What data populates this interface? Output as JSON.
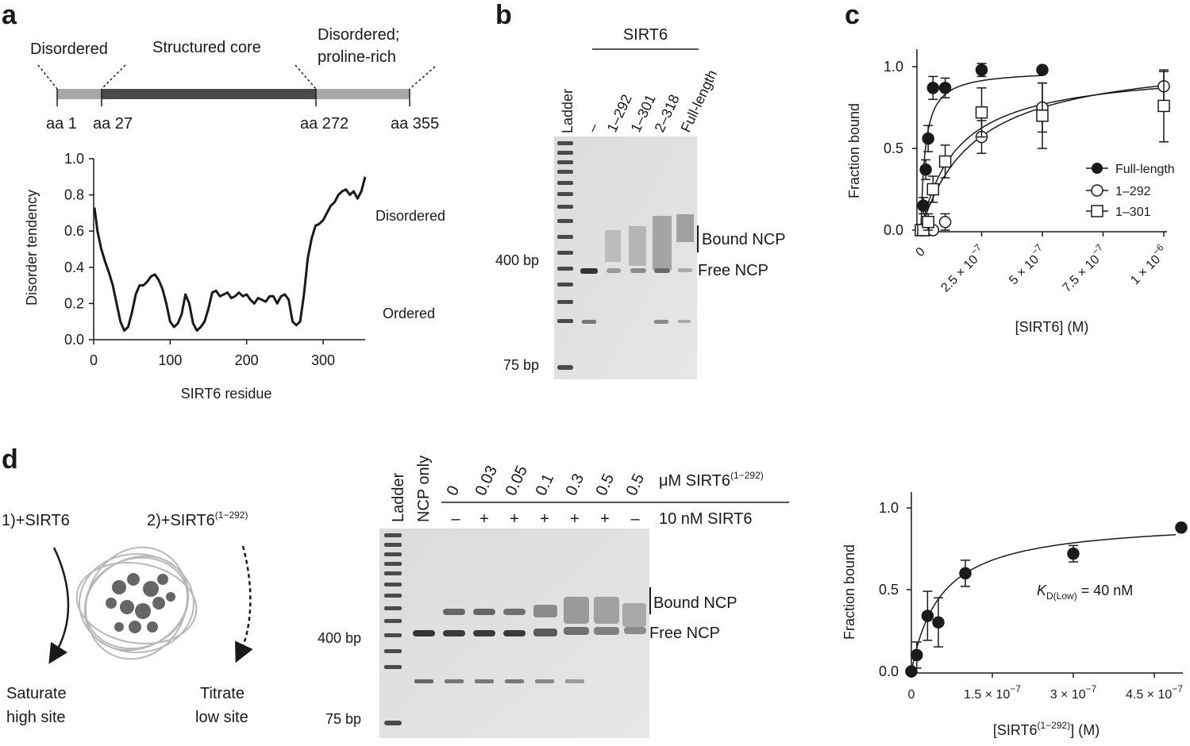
{
  "panels": {
    "a": "a",
    "b": "b",
    "c": "c",
    "d": "d"
  },
  "a": {
    "domains": {
      "disordered": "Disordered",
      "core": "Structured core",
      "proline1": "Disordered;",
      "proline2": "proline-rich"
    },
    "positions": [
      "aa 1",
      "aa 27",
      "aa 272",
      "aa 355"
    ],
    "ylabel": "Disorder tendency",
    "xlabel": "SIRT6 residue",
    "xticks": [
      "0",
      "100",
      "200",
      "300"
    ],
    "yticks": [
      "0.0",
      "0.2",
      "0.4",
      "0.6",
      "0.8",
      "1.0"
    ],
    "region_disordered": "Disordered",
    "region_ordered": "Ordered"
  },
  "b": {
    "header": "SIRT6",
    "lanes": [
      "Ladder",
      "–",
      "1–292",
      "1–301",
      "2–318",
      "Full-length"
    ],
    "markers": [
      "400 bp",
      "75 bp"
    ],
    "bound": "Bound NCP",
    "free": "Free NCP"
  },
  "c": {
    "ylabel": "Fraction bound",
    "xlabel": "[SIRT6] (M)",
    "yticks": [
      "0.0",
      "0.5",
      "1.0"
    ],
    "xticks": [
      {
        "m": "0",
        "e": ""
      },
      {
        "m": "2.5 × 10",
        "e": "−7"
      },
      {
        "m": "5 × 10",
        "e": "−7"
      },
      {
        "m": "7.5 × 10",
        "e": "−7"
      },
      {
        "m": "1 × 10",
        "e": "−6"
      }
    ],
    "legend": [
      "Full-length",
      "1–292",
      "1–301"
    ]
  },
  "d": {
    "step1": "1)+SIRT6",
    "step2": "2)+SIRT6",
    "step2_sup": "(1−292)",
    "saturate1": "Saturate",
    "saturate2": "high site",
    "titrate1": "Titrate",
    "titrate2": "low site",
    "gel_lanes": [
      "Ladder",
      "NCP only"
    ],
    "conc": [
      "0",
      "0.03",
      "0.05",
      "0.1",
      "0.3",
      "0.5",
      "0.5"
    ],
    "conc_label": "μM SIRT6",
    "conc_sup": "(1−292)",
    "signs": [
      "–",
      "+",
      "+",
      "+",
      "+",
      "+",
      "–"
    ],
    "sirt6_label": "10 nM SIRT6",
    "markers": [
      "400 bp",
      "75 bp"
    ],
    "bound": "Bound NCP",
    "free": "Free NCP",
    "ylabel": "Fraction bound",
    "yticks": [
      "0.0",
      "0.5",
      "1.0"
    ],
    "xticks": [
      {
        "m": "0",
        "e": ""
      },
      {
        "m": "1.5 × 10",
        "e": "−7"
      },
      {
        "m": "3 × 10",
        "e": "−7"
      },
      {
        "m": "4.5 × 10",
        "e": "−7"
      }
    ],
    "xlabel": "[SIRT6",
    "xlabel_sup": "(1−292)",
    "xlabel_end": "] (M)",
    "kd_k": "K",
    "kd_sub": "D(Low)",
    "kd_val": " = 40 nM"
  },
  "chart_data": [
    {
      "type": "line",
      "panel": "a",
      "xlabel": "SIRT6 residue",
      "ylabel": "Disorder tendency",
      "xlim": [
        0,
        355
      ],
      "ylim": [
        0,
        1.0
      ],
      "x": [
        1,
        5,
        10,
        15,
        20,
        25,
        30,
        35,
        40,
        45,
        50,
        55,
        60,
        65,
        70,
        75,
        80,
        85,
        90,
        95,
        100,
        105,
        110,
        115,
        120,
        125,
        130,
        135,
        140,
        145,
        150,
        155,
        160,
        165,
        170,
        175,
        180,
        185,
        190,
        195,
        200,
        205,
        210,
        215,
        220,
        225,
        230,
        235,
        240,
        245,
        250,
        255,
        260,
        265,
        270,
        275,
        280,
        285,
        290,
        295,
        300,
        305,
        310,
        315,
        320,
        325,
        330,
        335,
        340,
        345,
        350,
        355
      ],
      "y": [
        0.73,
        0.6,
        0.5,
        0.43,
        0.37,
        0.3,
        0.2,
        0.1,
        0.05,
        0.07,
        0.15,
        0.25,
        0.3,
        0.3,
        0.32,
        0.35,
        0.36,
        0.33,
        0.28,
        0.2,
        0.1,
        0.07,
        0.09,
        0.14,
        0.25,
        0.2,
        0.09,
        0.05,
        0.07,
        0.1,
        0.17,
        0.26,
        0.27,
        0.24,
        0.25,
        0.26,
        0.23,
        0.24,
        0.26,
        0.24,
        0.25,
        0.22,
        0.2,
        0.23,
        0.22,
        0.21,
        0.24,
        0.24,
        0.2,
        0.24,
        0.25,
        0.22,
        0.1,
        0.08,
        0.1,
        0.25,
        0.45,
        0.56,
        0.63,
        0.64,
        0.66,
        0.7,
        0.74,
        0.76,
        0.8,
        0.82,
        0.83,
        0.8,
        0.82,
        0.78,
        0.82,
        0.9
      ]
    },
    {
      "type": "scatter",
      "panel": "c",
      "xlabel": "[SIRT6] (M)",
      "ylabel": "Fraction bound",
      "xlim": [
        0,
        1e-06
      ],
      "ylim": [
        0,
        1.0
      ],
      "legend_position": "right",
      "series": [
        {
          "name": "Full-length",
          "marker": "filled-circle",
          "x": [
            0,
            1e-08,
            2e-08,
            3e-08,
            5e-08,
            1e-07,
            2.5e-07,
            5e-07
          ],
          "y": [
            0.0,
            0.15,
            0.37,
            0.56,
            0.87,
            0.87,
            0.98,
            0.98
          ],
          "err": [
            0.03,
            0.05,
            0.06,
            0.08,
            0.07,
            0.06,
            0.04,
            0.02
          ]
        },
        {
          "name": "1–292",
          "marker": "open-circle",
          "x": [
            0,
            1e-08,
            3e-08,
            5e-08,
            1e-07,
            2.5e-07,
            5e-07,
            1e-06
          ],
          "y": [
            0.0,
            0.0,
            0.0,
            0.0,
            0.05,
            0.57,
            0.75,
            0.88
          ],
          "err": [
            0.0,
            0.0,
            0.01,
            0.01,
            0.05,
            0.1,
            0.15,
            0.09
          ]
        },
        {
          "name": "1–301",
          "marker": "open-square",
          "x": [
            0,
            1e-08,
            3e-08,
            5e-08,
            1e-07,
            2.5e-07,
            5e-07,
            1e-06
          ],
          "y": [
            0.0,
            0.0,
            0.05,
            0.25,
            0.42,
            0.72,
            0.7,
            0.76
          ],
          "err": [
            0.0,
            0.01,
            0.05,
            0.08,
            0.1,
            0.15,
            0.2,
            0.22
          ]
        }
      ]
    },
    {
      "type": "scatter",
      "panel": "d",
      "xlabel": "[SIRT6(1−292)] (M)",
      "ylabel": "Fraction bound",
      "xlim": [
        0,
        5e-07
      ],
      "ylim": [
        0,
        1.0
      ],
      "series": [
        {
          "marker": "filled-circle",
          "x": [
            0,
            1e-08,
            3e-08,
            5e-08,
            1e-07,
            3e-07,
            5e-07
          ],
          "y": [
            0.0,
            0.1,
            0.34,
            0.3,
            0.6,
            0.72,
            0.88
          ],
          "err": [
            0.0,
            0.08,
            0.15,
            0.15,
            0.08,
            0.05,
            0.0
          ]
        }
      ],
      "annotation": "K D(Low) = 40 nM"
    }
  ]
}
